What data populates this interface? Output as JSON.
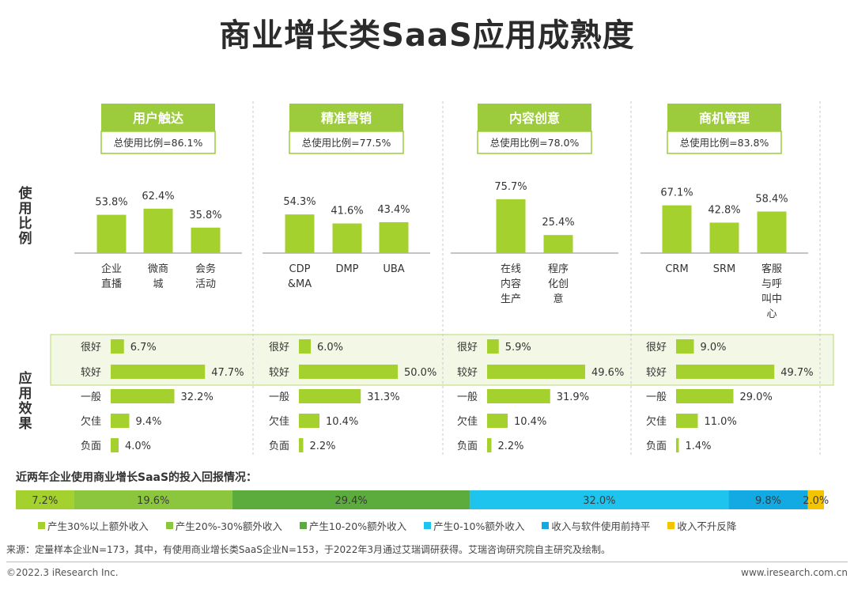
{
  "title": "商业增长类SaaS应用成熟度",
  "row_labels": {
    "usage": "使用比例",
    "effect": "应用效果"
  },
  "colors": {
    "bar": "#a5d12f",
    "header_bg": "#9ccb3b",
    "highlight_bg": "#f3f8e6",
    "highlight_border": "#b9d96e"
  },
  "chart_data": [
    {
      "type": "bar",
      "group": "用户触达",
      "total_label": "总使用比例=86.1%",
      "categories": [
        "企业直播",
        "微商城",
        "会务活动"
      ],
      "values": [
        53.8,
        62.4,
        35.8
      ],
      "value_labels": [
        "53.8%",
        "62.4%",
        "35.8%"
      ],
      "category_lines": [
        [
          "企业",
          "直播"
        ],
        [
          "微商",
          "城"
        ],
        [
          "会务",
          "活动"
        ]
      ],
      "effect_categories": [
        "很好",
        "较好",
        "一般",
        "欠佳",
        "负面"
      ],
      "effect_values": [
        6.7,
        47.7,
        32.2,
        9.4,
        4.0
      ],
      "effect_labels": [
        "6.7%",
        "47.7%",
        "32.2%",
        "9.4%",
        "4.0%"
      ]
    },
    {
      "type": "bar",
      "group": "精准营销",
      "total_label": "总使用比例=77.5%",
      "categories": [
        "CDP&MA",
        "DMP",
        "UBA"
      ],
      "values": [
        54.3,
        41.6,
        43.4
      ],
      "value_labels": [
        "54.3%",
        "41.6%",
        "43.4%"
      ],
      "category_lines": [
        [
          "CDP",
          "&MA"
        ],
        [
          "DMP"
        ],
        [
          "UBA"
        ]
      ],
      "effect_categories": [
        "很好",
        "较好",
        "一般",
        "欠佳",
        "负面"
      ],
      "effect_values": [
        6.0,
        50.0,
        31.3,
        10.4,
        2.2
      ],
      "effect_labels": [
        "6.0%",
        "50.0%",
        "31.3%",
        "10.4%",
        "2.2%"
      ]
    },
    {
      "type": "bar",
      "group": "内容创意",
      "total_label": "总使用比例=78.0%",
      "categories": [
        "在线内容生产",
        "程序化创意"
      ],
      "values": [
        75.7,
        25.4
      ],
      "value_labels": [
        "75.7%",
        "25.4%"
      ],
      "category_lines": [
        [
          "在线",
          "内容",
          "生产"
        ],
        [
          "程序",
          "化创",
          "意"
        ]
      ],
      "effect_categories": [
        "很好",
        "较好",
        "一般",
        "欠佳",
        "负面"
      ],
      "effect_values": [
        5.9,
        49.6,
        31.9,
        10.4,
        2.2
      ],
      "effect_labels": [
        "5.9%",
        "49.6%",
        "31.9%",
        "10.4%",
        "2.2%"
      ]
    },
    {
      "type": "bar",
      "group": "商机管理",
      "total_label": "总使用比例=83.8%",
      "categories": [
        "CRM",
        "SRM",
        "客服与呼叫中心"
      ],
      "values": [
        67.1,
        42.8,
        58.4
      ],
      "value_labels": [
        "67.1%",
        "42.8%",
        "58.4%"
      ],
      "category_lines": [
        [
          "CRM"
        ],
        [
          "SRM"
        ],
        [
          "客服",
          "与呼",
          "叫中",
          "心"
        ]
      ],
      "effect_categories": [
        "很好",
        "较好",
        "一般",
        "欠佳",
        "负面"
      ],
      "effect_values": [
        9.0,
        49.7,
        29.0,
        11.0,
        1.4
      ],
      "effect_labels": [
        "9.0%",
        "49.7%",
        "29.0%",
        "11.0%",
        "1.4%"
      ]
    },
    {
      "type": "bar",
      "stacked": true,
      "title": "近两年企业使用商业增长SaaS的投入回报情况：",
      "series": [
        {
          "name": "产生30%以上额外收入",
          "value": 7.2,
          "label": "7.2%",
          "color": "#a5d12f"
        },
        {
          "name": "产生20%-30%额外收入",
          "value": 19.6,
          "label": "19.6%",
          "color": "#8cc63f"
        },
        {
          "name": "产生10-20%额外收入",
          "value": 29.4,
          "label": "29.4%",
          "color": "#5bab3d"
        },
        {
          "name": "产生0-10%额外收入",
          "value": 32.0,
          "label": "32.0%",
          "color": "#1fc4ee"
        },
        {
          "name": "收入与软件使用前持平",
          "value": 9.8,
          "label": "9.8%",
          "color": "#13a9e2"
        },
        {
          "name": "收入不升反降",
          "value": 2.0,
          "label": "2.0%",
          "color": "#f5c400"
        }
      ]
    }
  ],
  "source": "来源：定量样本企业N=173，其中，有使用商业增长类SaaS企业N=153，于2022年3月通过艾瑞调研获得。艾瑞咨询研究院自主研究及绘制。",
  "footer": {
    "copyright": "©2022.3 iResearch Inc.",
    "website": "www.iresearch.com.cn"
  }
}
